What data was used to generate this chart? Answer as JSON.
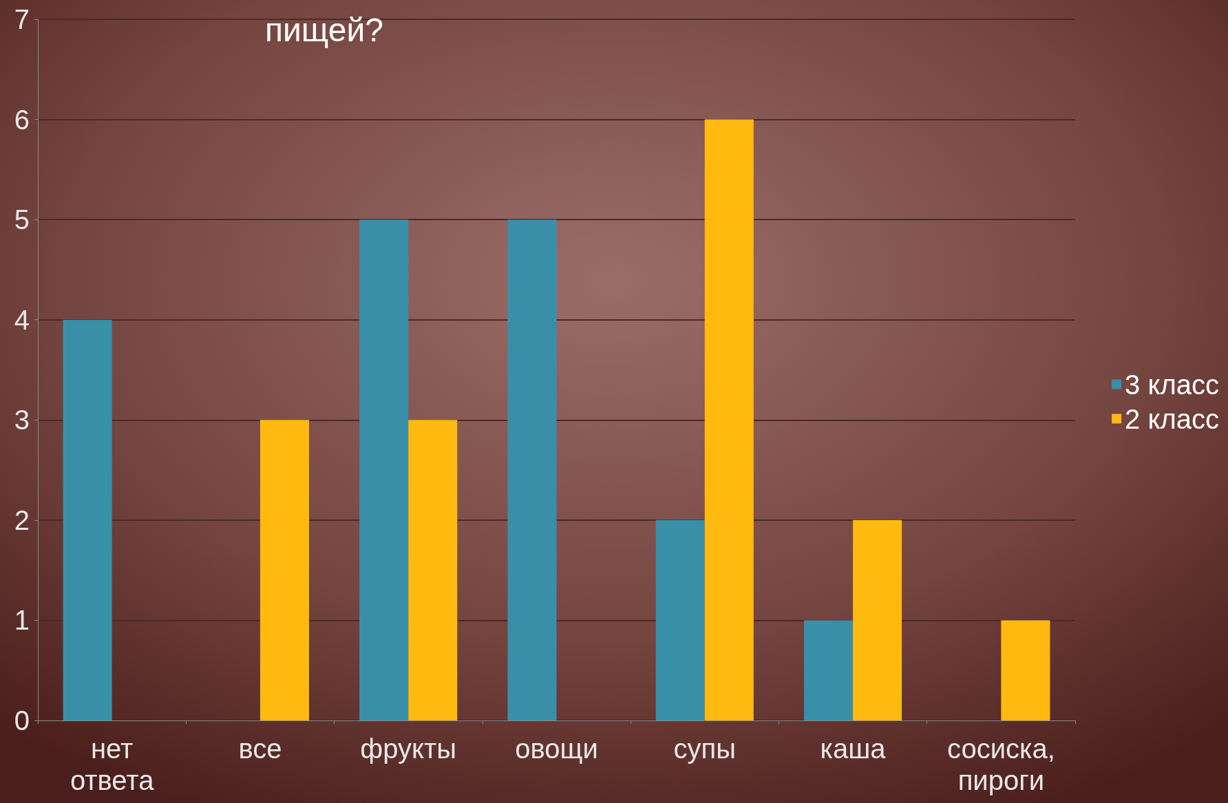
{
  "chart_data": {
    "type": "bar",
    "title": "пищей?",
    "categories": [
      "нет ответа",
      "все",
      "фрукты",
      "овощи",
      "супы",
      "каша",
      "сосиска, пироги"
    ],
    "series": [
      {
        "name": "3 класс",
        "color": "#3a8fa8",
        "values": [
          4,
          0,
          5,
          5,
          2,
          1,
          0
        ]
      },
      {
        "name": "2 класс",
        "color": "#ffb90f",
        "values": [
          0,
          3,
          3,
          0,
          6,
          2,
          1
        ]
      }
    ],
    "ylim": [
      0,
      7
    ],
    "yticks": [
      0,
      1,
      2,
      3,
      4,
      5,
      6,
      7
    ],
    "grid": "y",
    "legend": "right"
  }
}
